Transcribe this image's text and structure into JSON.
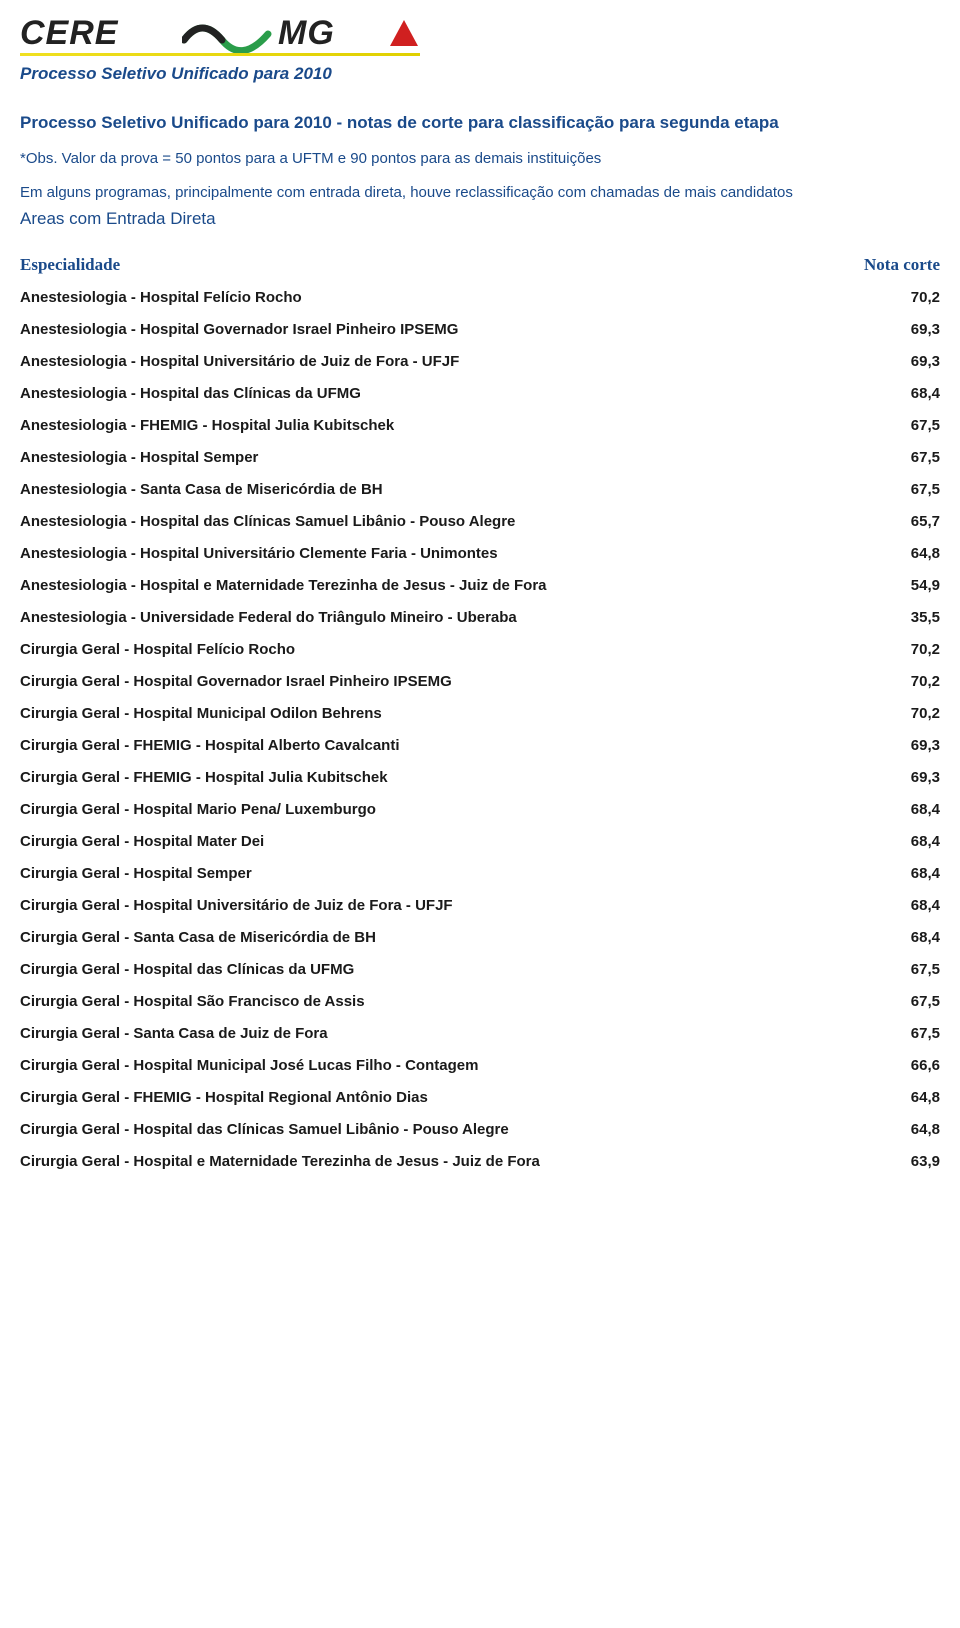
{
  "logo": {
    "brand_left": "CERE",
    "brand_right": "MG",
    "wave_color_green": "#2a9d4a",
    "wave_color_black": "#222222",
    "triangle_color": "#d02020",
    "underline_color": "#e8d81a"
  },
  "page_subtitle": "Processo Seletivo Unificado para 2010",
  "doc_title": "Processo Seletivo Unificado para 2010 - notas de corte para classificação para segunda etapa",
  "note": "*Obs. Valor da prova = 50 pontos para a UFTM e 90 pontos para as demais instituições",
  "reclass": "Em alguns programas, principalmente com entrada direta, houve reclassificação com chamadas de mais candidatos",
  "areas": "Areas com Entrada Direta",
  "columns": {
    "left": "Especialidade",
    "right": "Nota corte"
  },
  "colors": {
    "blue": "#1a4a8a",
    "text": "#1a1a1a",
    "background": "#ffffff"
  },
  "fonts": {
    "body_family": "Arial",
    "header_family": "Times New Roman",
    "row_size_pt": 11,
    "row_weight": "bold",
    "header_size_pt": 13,
    "title_size_pt": 13
  },
  "rows": [
    {
      "label": "Anestesiologia - Hospital Felício Rocho",
      "value": "70,2"
    },
    {
      "label": "Anestesiologia - Hospital Governador Israel Pinheiro IPSEMG",
      "value": "69,3"
    },
    {
      "label": "Anestesiologia - Hospital Universitário de Juiz de Fora - UFJF",
      "value": "69,3"
    },
    {
      "label": "Anestesiologia - Hospital das Clínicas da UFMG",
      "value": "68,4"
    },
    {
      "label": "Anestesiologia - FHEMIG - Hospital Julia Kubitschek",
      "value": "67,5"
    },
    {
      "label": "Anestesiologia - Hospital Semper",
      "value": "67,5"
    },
    {
      "label": "Anestesiologia - Santa Casa de Misericórdia de BH",
      "value": "67,5"
    },
    {
      "label": "Anestesiologia - Hospital das Clínicas Samuel Libânio - Pouso Alegre",
      "value": "65,7"
    },
    {
      "label": "Anestesiologia - Hospital Universitário Clemente Faria - Unimontes",
      "value": "64,8"
    },
    {
      "label": "Anestesiologia - Hospital e Maternidade Terezinha de Jesus - Juiz de Fora",
      "value": "54,9"
    },
    {
      "label": "Anestesiologia - Universidade Federal do Triângulo Mineiro - Uberaba",
      "value": "35,5"
    },
    {
      "label": "Cirurgia Geral - Hospital Felício Rocho",
      "value": "70,2"
    },
    {
      "label": "Cirurgia Geral - Hospital Governador Israel Pinheiro IPSEMG",
      "value": "70,2"
    },
    {
      "label": "Cirurgia Geral - Hospital Municipal Odilon Behrens",
      "value": "70,2"
    },
    {
      "label": "Cirurgia Geral - FHEMIG - Hospital Alberto Cavalcanti",
      "value": "69,3"
    },
    {
      "label": "Cirurgia Geral - FHEMIG - Hospital Julia Kubitschek",
      "value": "69,3"
    },
    {
      "label": "Cirurgia Geral - Hospital Mario Pena/ Luxemburgo",
      "value": "68,4"
    },
    {
      "label": "Cirurgia Geral - Hospital Mater Dei",
      "value": "68,4"
    },
    {
      "label": "Cirurgia Geral - Hospital Semper",
      "value": "68,4"
    },
    {
      "label": "Cirurgia Geral - Hospital Universitário de Juiz de Fora - UFJF",
      "value": "68,4"
    },
    {
      "label": "Cirurgia Geral - Santa Casa de Misericórdia de BH",
      "value": "68,4"
    },
    {
      "label": "Cirurgia Geral - Hospital das Clínicas da UFMG",
      "value": "67,5"
    },
    {
      "label": "Cirurgia Geral - Hospital São Francisco de Assis",
      "value": "67,5"
    },
    {
      "label": "Cirurgia Geral - Santa Casa de Juiz de Fora",
      "value": "67,5"
    },
    {
      "label": "Cirurgia Geral - Hospital Municipal José Lucas Filho - Contagem",
      "value": "66,6"
    },
    {
      "label": "Cirurgia Geral - FHEMIG - Hospital Regional Antônio Dias",
      "value": "64,8"
    },
    {
      "label": "Cirurgia Geral - Hospital das Clínicas Samuel Libânio - Pouso Alegre",
      "value": "64,8"
    },
    {
      "label": "Cirurgia Geral - Hospital e Maternidade Terezinha de Jesus - Juiz de Fora",
      "value": "63,9"
    }
  ]
}
